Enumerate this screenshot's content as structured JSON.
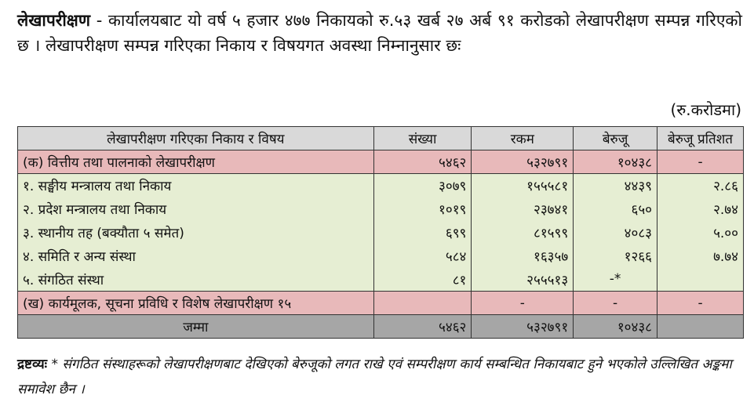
{
  "paragraph": {
    "lead": "लेखापरीक्षण",
    "text": " - कार्यालयबाट यो वर्ष ५ हजार ४७७ निकायको रु.५३ खर्ब २७ अर्ब ९१ करोडको लेखापरीक्षण सम्पन्न गरिएको छ । लेखापरीक्षण सम्पन्न गरिएका निकाय र विषयगत अवस्था निम्नानुसार छः"
  },
  "unit_label": "(रु.करोडमा)",
  "table": {
    "headers": [
      "लेखापरीक्षण गरिएका निकाय र विषय",
      "संख्या",
      "रकम",
      "बेरुजू",
      "बेरुजू प्रतिशत"
    ],
    "rows": [
      {
        "label": "(क) वित्तीय तथा पालनाको लेखापरीक्षण",
        "count": "५४६२",
        "amount": "५३२७९१",
        "beruju": "१०४३८",
        "percent": "-"
      },
      {
        "label": "१. सङ्घीय मन्त्रालय तथा निकाय",
        "count": "३०७९",
        "amount": "१५५५८१",
        "beruju": "४४३९",
        "percent": "२.८६"
      },
      {
        "label": "२. प्रदेश मन्त्रालय तथा निकाय",
        "count": "१०१९",
        "amount": "२३७४१",
        "beruju": "६५०",
        "percent": "२.७४"
      },
      {
        "label": "३. स्थानीय तह  (बक्यौता  ५ समेत)",
        "count": "६९९",
        "amount": "८१५९९",
        "beruju": "४०८३",
        "percent": "५.००"
      },
      {
        "label": "४. समिति र अन्य संस्था",
        "count": "५८४",
        "amount": "१६३५७",
        "beruju": "१२६६",
        "percent": "७.७४"
      },
      {
        "label": "५. संगठित संस्था",
        "count": "८१",
        "amount": "२५५५१३",
        "beruju": "-*",
        "percent": ""
      },
      {
        "label": "(ख) कार्यमूलक, सूचना प्रविधि र विशेष लेखापरीक्षण १५",
        "count": "",
        "amount": "-",
        "beruju": "-",
        "percent": "-"
      }
    ],
    "total": {
      "label": "जम्मा",
      "count": "५४६२",
      "amount": "५३२७९१",
      "beruju": "१०४३८",
      "percent": ""
    }
  },
  "note": {
    "label": "द्रष्टव्यः",
    "text": " * संगठित संस्थाहरूको लेखापरीक्षणबाट देखिएको बेरुजूको लगत राखे एवं सम्परीक्षण कार्य सम्बन्धित निकायबाट हुने भएकोले उल्लिखित अङ्कमा समावेश छैन ।"
  }
}
